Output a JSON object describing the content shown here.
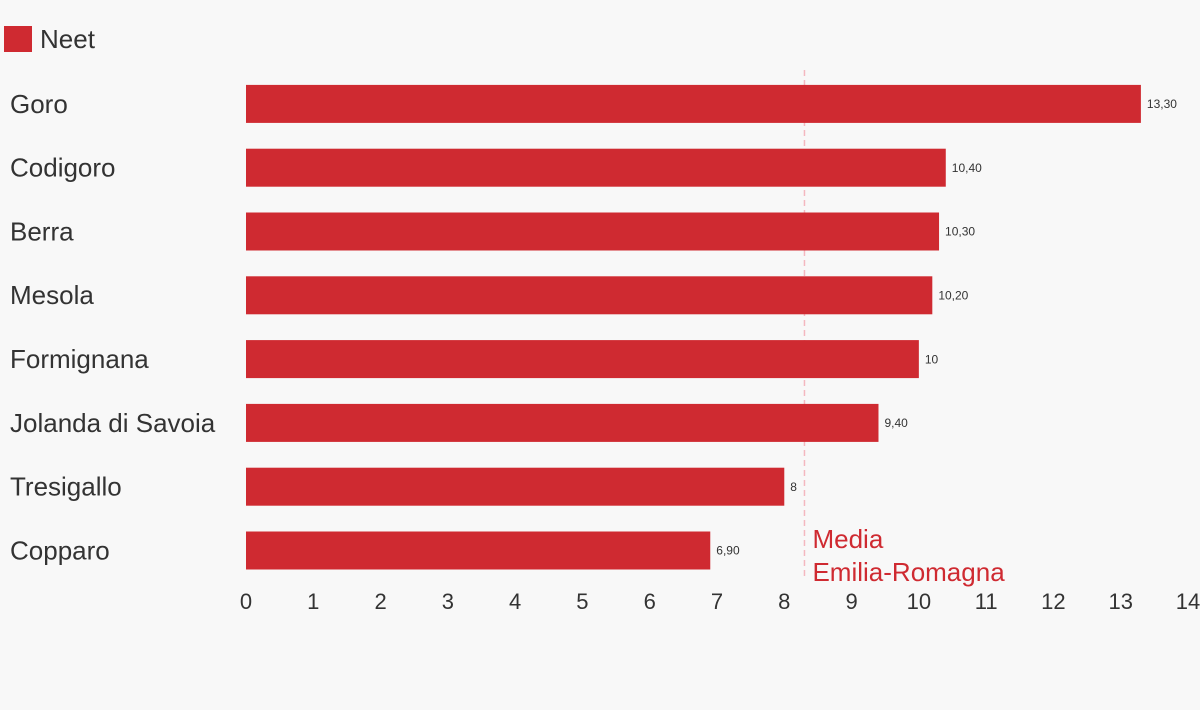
{
  "chart_data": {
    "type": "hbar",
    "categories": [
      "Goro",
      "Codigoro",
      "Berra",
      "Mesola",
      "Formignana",
      "Jolanda di Savoia",
      "Tresigallo",
      "Copparo"
    ],
    "series": [
      {
        "name": "Neet",
        "color": "#cf2a31",
        "values": [
          13.3,
          10.4,
          10.3,
          10.2,
          10,
          9.4,
          8,
          6.9
        ],
        "value_labels": [
          "13,30",
          "10,40",
          "10,30",
          "10,20",
          "10",
          "9,40",
          "8",
          "6,90"
        ]
      }
    ],
    "xlim": [
      0,
      14
    ],
    "xticks": [
      0,
      1,
      2,
      3,
      4,
      5,
      6,
      7,
      8,
      9,
      10,
      11,
      12,
      13,
      14
    ],
    "reference_line": {
      "value": 8.3,
      "label": [
        "Media",
        "Emilia-Romagna"
      ],
      "color": "#f4b8c0"
    },
    "legend": "top-left"
  }
}
